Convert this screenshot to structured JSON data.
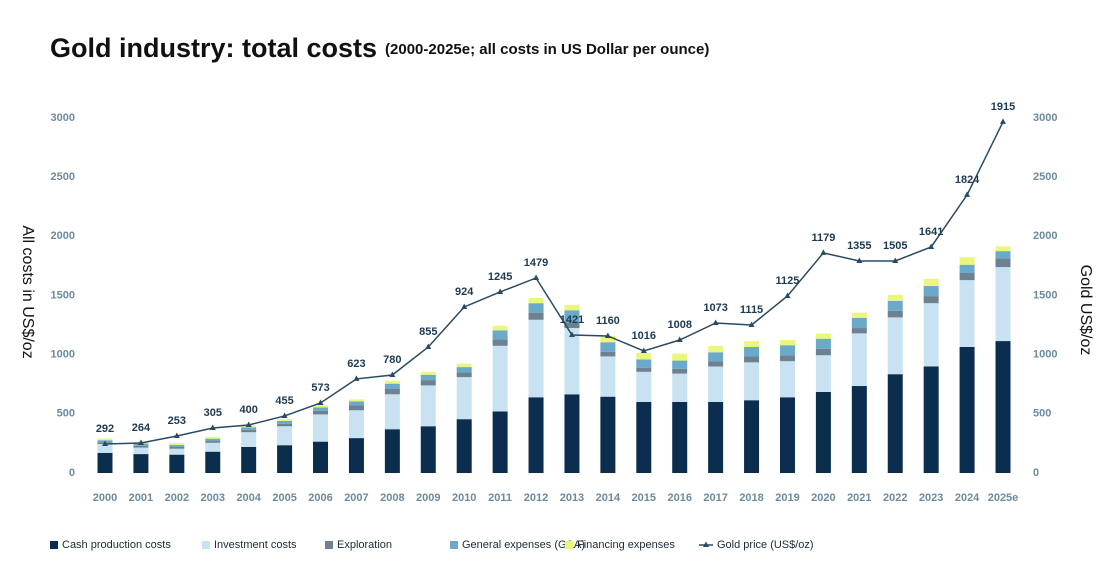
{
  "chart_data": {
    "type": "bar",
    "title": "Gold industry: total costs",
    "subtitle": "(2000-2025e; all costs in US Dollar per ounce)",
    "ylabel": "All costs in US$/oz",
    "y2label": "Gold US$/oz",
    "categories": [
      "2000",
      "2001",
      "2002",
      "2003",
      "2004",
      "2005",
      "2006",
      "2007",
      "2008",
      "2009",
      "2010",
      "2011",
      "2012",
      "2013",
      "2014",
      "2015",
      "2016",
      "2017",
      "2018",
      "2019",
      "2020",
      "2021",
      "2022",
      "2023",
      "2024",
      "2025e"
    ],
    "series": [
      {
        "name": "Cash production costs",
        "color": "#0b2e4f",
        "type": "bar",
        "values": [
          170,
          160,
          155,
          180,
          220,
          235,
          265,
          295,
          370,
          395,
          455,
          520,
          640,
          665,
          645,
          600,
          600,
          600,
          615,
          640,
          685,
          735,
          835,
          900,
          1065,
          1115
        ]
      },
      {
        "name": "Investment costs",
        "color": "#c9e2f2",
        "type": "bar",
        "values": [
          75,
          55,
          50,
          75,
          125,
          160,
          230,
          235,
          295,
          345,
          355,
          555,
          655,
          560,
          340,
          255,
          240,
          300,
          320,
          305,
          310,
          445,
          480,
          535,
          565,
          625
        ]
      },
      {
        "name": "Exploration",
        "color": "#6d8191",
        "type": "bar",
        "values": [
          15,
          15,
          15,
          15,
          20,
          20,
          30,
          40,
          45,
          45,
          40,
          55,
          60,
          45,
          40,
          35,
          40,
          45,
          50,
          50,
          55,
          45,
          55,
          60,
          60,
          75
        ]
      },
      {
        "name": "General expenses (G&A)",
        "color": "#6aa9c9",
        "type": "bar",
        "values": [
          17,
          19,
          18,
          20,
          20,
          25,
          30,
          35,
          45,
          45,
          45,
          75,
          80,
          105,
          80,
          70,
          70,
          75,
          80,
          85,
          85,
          85,
          85,
          85,
          70,
          60
        ]
      },
      {
        "name": "Financing expenses",
        "color": "#eaf77c",
        "type": "bar",
        "values": [
          15,
          15,
          15,
          15,
          15,
          15,
          18,
          18,
          25,
          25,
          29,
          40,
          44,
          46,
          55,
          56,
          58,
          53,
          50,
          45,
          44,
          45,
          50,
          61,
          64,
          40
        ]
      },
      {
        "name": "Gold price (US$/oz)",
        "color": "#2a4a63",
        "type": "line",
        "axis": "y2",
        "values": [
          245,
          254,
          313,
          380,
          406,
          482,
          592,
          795,
          828,
          1065,
          1403,
          1530,
          1648,
          1166,
          1158,
          1031,
          1124,
          1268,
          1251,
          1496,
          1860,
          1792,
          1792,
          1910,
          2350,
          2967
        ]
      }
    ],
    "total_labels": [
      292,
      264,
      253,
      305,
      400,
      455,
      573,
      623,
      780,
      855,
      924,
      1245,
      1479,
      1421,
      1160,
      1016,
      1008,
      1073,
      1115,
      1125,
      1179,
      1355,
      1505,
      1641,
      1824,
      1915
    ],
    "ylim": [
      0,
      3000
    ],
    "yticks": [
      0,
      500,
      1000,
      1500,
      2000,
      2500,
      3000
    ],
    "y2lim": [
      0,
      3000
    ],
    "y2ticks": [
      0,
      500,
      1000,
      1500,
      2000,
      2500,
      3000
    ],
    "grid": false
  }
}
